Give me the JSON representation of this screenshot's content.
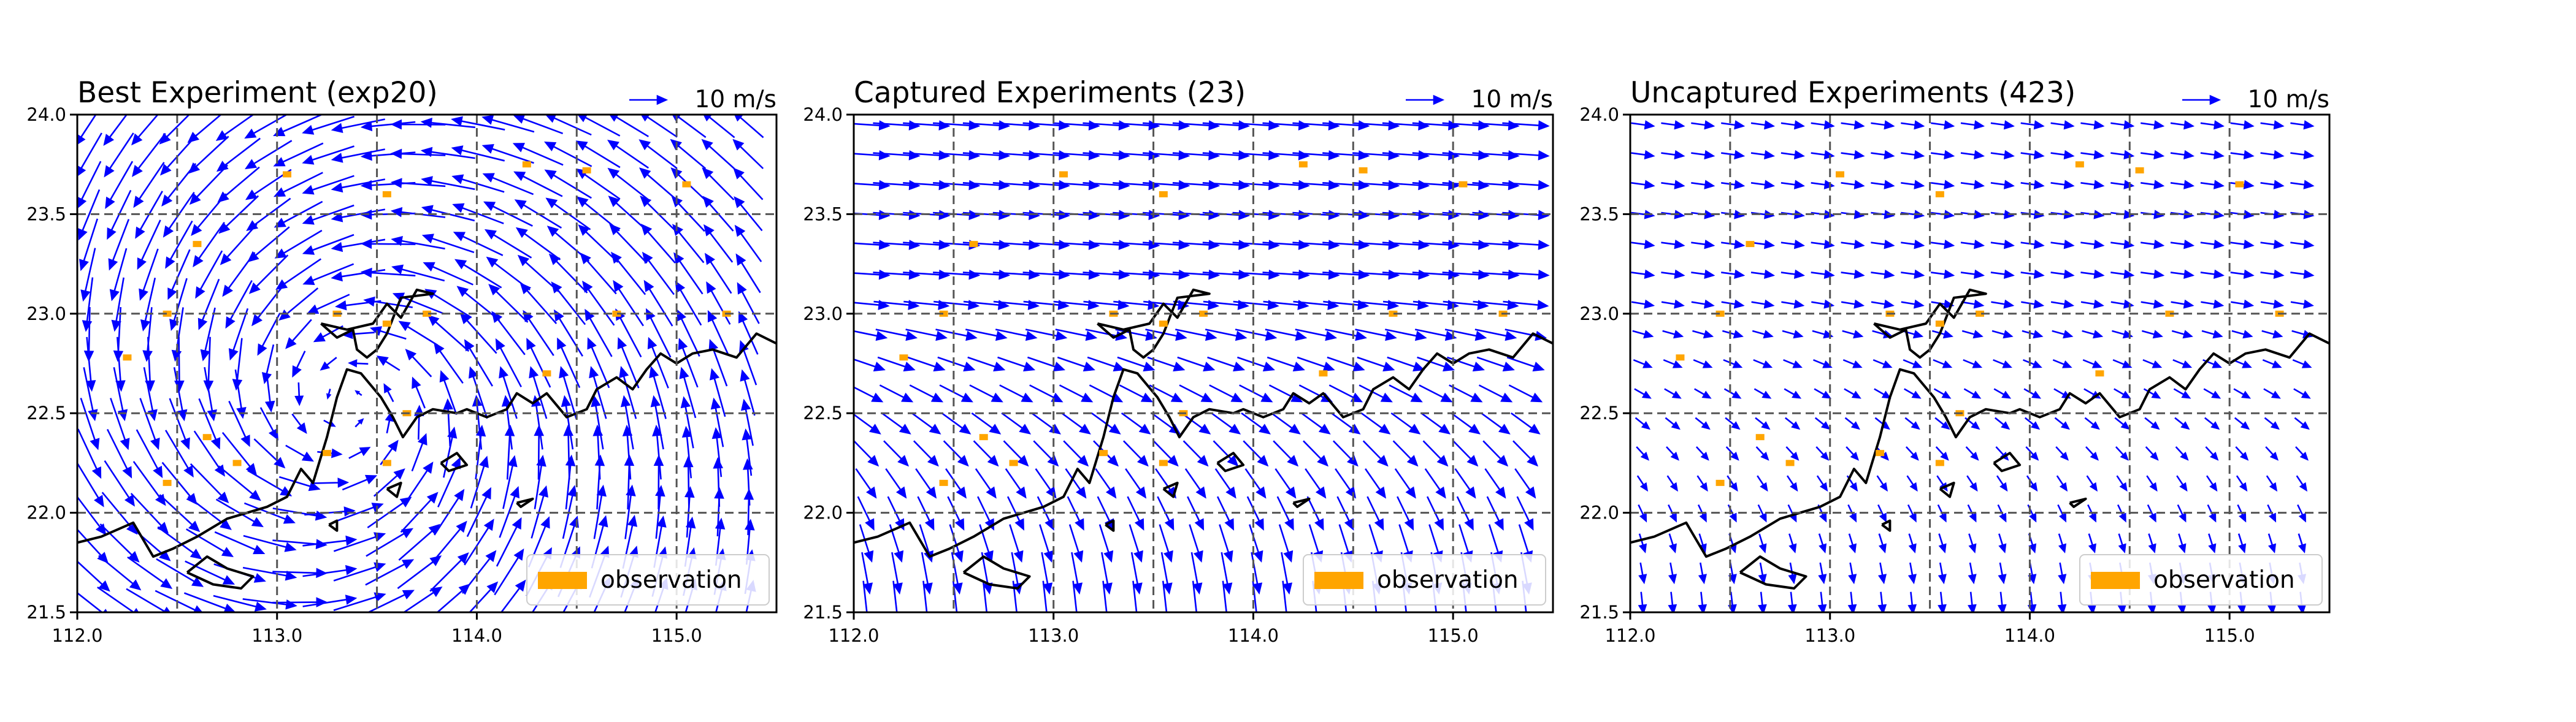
{
  "figure": {
    "colors": {
      "wind_vector": "#0000ff",
      "observation": "#ffa500",
      "coastline": "#000000",
      "grid": "#555555",
      "background": "#ffffff"
    }
  },
  "chart_data": [
    {
      "type": "quiver",
      "title": "Best Experiment (exp20)",
      "reference_label": "10 m/s",
      "legend": {
        "label": "observation",
        "placement": "lower-right"
      },
      "xlim": [
        112.0,
        115.5
      ],
      "ylim": [
        21.5,
        24.0
      ],
      "x_ticks": [
        "112.0",
        "113.0",
        "114.0",
        "115.0"
      ],
      "y_ticks": [
        "21.5",
        "22.0",
        "22.5",
        "23.0",
        "23.5",
        "24.0"
      ],
      "grid": "dashed",
      "grid_lon": [
        112.5,
        113.0,
        113.5,
        114.0,
        114.5,
        115.0
      ],
      "grid_lat": [
        22.0,
        22.5,
        23.0,
        23.5
      ],
      "field": {
        "pattern": "cyclonic",
        "center_lon": 113.35,
        "center_lat": 22.55,
        "vmax_ms": 14
      },
      "observations": [
        {
          "lon": 113.05,
          "lat": 23.7
        },
        {
          "lon": 113.55,
          "lat": 23.6
        },
        {
          "lon": 114.25,
          "lat": 23.75
        },
        {
          "lon": 114.55,
          "lat": 23.72
        },
        {
          "lon": 115.05,
          "lat": 23.65
        },
        {
          "lon": 112.6,
          "lat": 23.35
        },
        {
          "lon": 112.45,
          "lat": 23.0
        },
        {
          "lon": 112.25,
          "lat": 22.78
        },
        {
          "lon": 113.3,
          "lat": 23.0
        },
        {
          "lon": 113.55,
          "lat": 22.95
        },
        {
          "lon": 113.75,
          "lat": 23.0
        },
        {
          "lon": 114.7,
          "lat": 23.0
        },
        {
          "lon": 115.25,
          "lat": 23.0
        },
        {
          "lon": 112.65,
          "lat": 22.38
        },
        {
          "lon": 112.8,
          "lat": 22.25
        },
        {
          "lon": 113.25,
          "lat": 22.3
        },
        {
          "lon": 113.65,
          "lat": 22.5
        },
        {
          "lon": 113.55,
          "lat": 22.25
        },
        {
          "lon": 114.35,
          "lat": 22.7
        },
        {
          "lon": 112.45,
          "lat": 22.15
        }
      ]
    },
    {
      "type": "quiver",
      "title": "Captured Experiments (23)",
      "reference_label": "10 m/s",
      "legend": {
        "label": "observation",
        "placement": "lower-right"
      },
      "xlim": [
        112.0,
        115.5
      ],
      "ylim": [
        21.5,
        24.0
      ],
      "x_ticks": [
        "112.0",
        "113.0",
        "114.0",
        "115.0"
      ],
      "y_ticks": [
        "21.5",
        "22.0",
        "22.5",
        "23.0",
        "23.5",
        "24.0"
      ],
      "grid": "dashed",
      "grid_lon": [
        112.5,
        113.0,
        113.5,
        114.0,
        114.5,
        115.0
      ],
      "grid_lat": [
        22.0,
        22.5,
        23.0,
        23.5
      ],
      "field": {
        "pattern": "easterly-south-shear",
        "vmax_ms": 13
      },
      "observations": [
        {
          "lon": 113.05,
          "lat": 23.7
        },
        {
          "lon": 113.55,
          "lat": 23.6
        },
        {
          "lon": 114.25,
          "lat": 23.75
        },
        {
          "lon": 114.55,
          "lat": 23.72
        },
        {
          "lon": 115.05,
          "lat": 23.65
        },
        {
          "lon": 112.6,
          "lat": 23.35
        },
        {
          "lon": 112.45,
          "lat": 23.0
        },
        {
          "lon": 112.25,
          "lat": 22.78
        },
        {
          "lon": 113.3,
          "lat": 23.0
        },
        {
          "lon": 113.55,
          "lat": 22.95
        },
        {
          "lon": 113.75,
          "lat": 23.0
        },
        {
          "lon": 114.7,
          "lat": 23.0
        },
        {
          "lon": 115.25,
          "lat": 23.0
        },
        {
          "lon": 112.65,
          "lat": 22.38
        },
        {
          "lon": 112.8,
          "lat": 22.25
        },
        {
          "lon": 113.25,
          "lat": 22.3
        },
        {
          "lon": 113.65,
          "lat": 22.5
        },
        {
          "lon": 113.55,
          "lat": 22.25
        },
        {
          "lon": 114.35,
          "lat": 22.7
        },
        {
          "lon": 112.45,
          "lat": 22.15
        }
      ]
    },
    {
      "type": "quiver",
      "title": "Uncaptured Experiments (423)",
      "reference_label": "10 m/s",
      "legend": {
        "label": "observation",
        "placement": "lower-right"
      },
      "xlim": [
        112.0,
        115.5
      ],
      "ylim": [
        21.5,
        24.0
      ],
      "x_ticks": [
        "112.0",
        "113.0",
        "114.0",
        "115.0"
      ],
      "y_ticks": [
        "21.5",
        "22.0",
        "22.5",
        "23.0",
        "23.5",
        "24.0"
      ],
      "grid": "dashed",
      "grid_lon": [
        112.5,
        113.0,
        113.5,
        114.0,
        114.5,
        115.0
      ],
      "grid_lat": [
        22.0,
        22.5,
        23.0,
        23.5
      ],
      "field": {
        "pattern": "weak-easterly-south-shear",
        "vmax_ms": 9
      },
      "observations": [
        {
          "lon": 113.05,
          "lat": 23.7
        },
        {
          "lon": 113.55,
          "lat": 23.6
        },
        {
          "lon": 114.25,
          "lat": 23.75
        },
        {
          "lon": 114.55,
          "lat": 23.72
        },
        {
          "lon": 115.05,
          "lat": 23.65
        },
        {
          "lon": 112.6,
          "lat": 23.35
        },
        {
          "lon": 112.45,
          "lat": 23.0
        },
        {
          "lon": 112.25,
          "lat": 22.78
        },
        {
          "lon": 113.3,
          "lat": 23.0
        },
        {
          "lon": 113.55,
          "lat": 22.95
        },
        {
          "lon": 113.75,
          "lat": 23.0
        },
        {
          "lon": 114.7,
          "lat": 23.0
        },
        {
          "lon": 115.25,
          "lat": 23.0
        },
        {
          "lon": 112.65,
          "lat": 22.38
        },
        {
          "lon": 112.8,
          "lat": 22.25
        },
        {
          "lon": 113.25,
          "lat": 22.3
        },
        {
          "lon": 113.65,
          "lat": 22.5
        },
        {
          "lon": 113.55,
          "lat": 22.25
        },
        {
          "lon": 114.35,
          "lat": 22.7
        },
        {
          "lon": 112.45,
          "lat": 22.15
        }
      ]
    }
  ]
}
